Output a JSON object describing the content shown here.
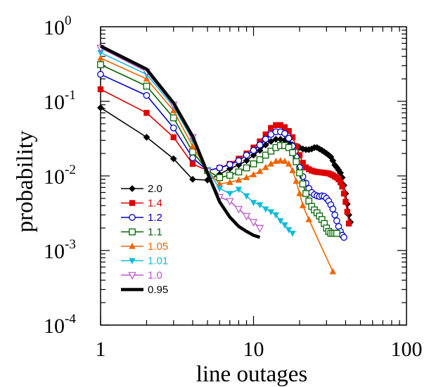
{
  "chart_data": {
    "type": "line",
    "title": "",
    "xlabel": "line outages",
    "ylabel": "probability",
    "xscale": "log",
    "yscale": "log",
    "xlim": [
      1,
      100
    ],
    "ylim": [
      0.0001,
      1
    ],
    "grid": false,
    "legend_position": "bottom-left",
    "x_ticks": [
      {
        "value": 1,
        "label": "1"
      },
      {
        "value": 10,
        "label": "10"
      },
      {
        "value": 100,
        "label": "100"
      }
    ],
    "y_ticks": [
      {
        "value": 1,
        "base": "10",
        "exp": "0"
      },
      {
        "value": 0.1,
        "base": "10",
        "exp": "-1"
      },
      {
        "value": 0.01,
        "base": "10",
        "exp": "-2"
      },
      {
        "value": 0.001,
        "base": "10",
        "exp": "-3"
      },
      {
        "value": 0.0001,
        "base": "10",
        "exp": "-4"
      }
    ],
    "series": [
      {
        "name": "2.0",
        "color": "#000000",
        "marker": "diamond",
        "text_color": "#000000",
        "x": [
          1,
          2,
          3,
          4,
          5,
          6,
          7,
          8,
          9,
          10,
          11,
          12,
          13,
          14,
          15,
          16,
          17,
          18,
          19,
          20,
          21,
          22,
          23,
          24,
          25,
          26,
          27,
          28,
          29,
          30,
          31,
          32,
          33,
          34,
          35,
          36,
          37,
          38,
          39,
          40,
          41,
          42,
          43
        ],
        "y": [
          0.082,
          0.033,
          0.017,
          0.009,
          0.0088,
          0.0105,
          0.0125,
          0.014,
          0.016,
          0.019,
          0.022,
          0.026,
          0.029,
          0.031,
          0.031,
          0.03,
          0.028,
          0.026,
          0.025,
          0.024,
          0.023,
          0.0225,
          0.0225,
          0.023,
          0.024,
          0.024,
          0.023,
          0.022,
          0.021,
          0.02,
          0.019,
          0.018,
          0.016,
          0.014,
          0.013,
          0.012,
          0.011,
          0.0095,
          0.0075,
          0.0058,
          0.0042,
          0.003,
          0.0024
        ]
      },
      {
        "name": "1.4",
        "color": "#dd0000",
        "marker": "square-filled",
        "text_color": "#dd0000",
        "x": [
          1,
          2,
          3,
          4,
          5,
          6,
          7,
          8,
          9,
          10,
          11,
          12,
          13,
          14,
          15,
          16,
          17,
          18,
          19,
          20,
          21,
          22,
          23,
          24,
          25,
          26,
          27,
          28,
          29,
          30,
          31,
          32,
          33,
          34,
          35,
          36,
          37,
          38,
          39,
          40,
          41,
          42
        ],
        "y": [
          0.145,
          0.07,
          0.033,
          0.0145,
          0.0118,
          0.0128,
          0.0145,
          0.017,
          0.02,
          0.024,
          0.029,
          0.036,
          0.044,
          0.048,
          0.048,
          0.045,
          0.04,
          0.033,
          0.025,
          0.019,
          0.015,
          0.013,
          0.0123,
          0.0118,
          0.0115,
          0.0113,
          0.0112,
          0.0111,
          0.011,
          0.0109,
          0.0108,
          0.0105,
          0.0102,
          0.0098,
          0.0095,
          0.009,
          0.0082,
          0.0072,
          0.0058,
          0.0045,
          0.0033,
          0.0023
        ]
      },
      {
        "name": "1.2",
        "color": "#0000cc",
        "marker": "circle-open",
        "text_color": "#0000cc",
        "x": [
          1,
          2,
          3,
          4,
          5,
          6,
          7,
          8,
          9,
          10,
          11,
          12,
          13,
          14,
          15,
          16,
          17,
          18,
          19,
          20,
          21,
          22,
          23,
          24,
          25,
          26,
          27,
          28,
          29,
          30,
          31,
          32,
          33,
          34,
          35,
          36,
          37,
          38,
          39
        ],
        "y": [
          0.23,
          0.12,
          0.044,
          0.0175,
          0.0118,
          0.0128,
          0.0142,
          0.016,
          0.019,
          0.022,
          0.026,
          0.031,
          0.036,
          0.039,
          0.039,
          0.037,
          0.032,
          0.025,
          0.018,
          0.013,
          0.0098,
          0.008,
          0.0068,
          0.006,
          0.0056,
          0.0054,
          0.0053,
          0.0054,
          0.0053,
          0.005,
          0.0046,
          0.0041,
          0.0036,
          0.003,
          0.0025,
          0.0021,
          0.0018,
          0.0016,
          0.0015
        ]
      },
      {
        "name": "1.1",
        "color": "#006600",
        "marker": "square-open",
        "text_color": "#006600",
        "x": [
          1,
          2,
          3,
          4,
          5,
          6,
          7,
          8,
          9,
          10,
          11,
          12,
          13,
          14,
          15,
          16,
          17,
          18,
          19,
          20,
          21,
          22,
          23,
          24,
          25,
          26,
          27,
          28,
          29,
          30,
          31,
          32,
          33,
          34,
          35
        ],
        "y": [
          0.31,
          0.16,
          0.06,
          0.021,
          0.0118,
          0.0095,
          0.0102,
          0.0113,
          0.0128,
          0.0145,
          0.0165,
          0.019,
          0.0215,
          0.024,
          0.0255,
          0.0255,
          0.024,
          0.0205,
          0.0155,
          0.011,
          0.0078,
          0.0058,
          0.0046,
          0.0039,
          0.0035,
          0.0032,
          0.0029,
          0.0026,
          0.0023,
          0.002,
          0.0018,
          0.0017,
          0.0017,
          0.0017,
          0.0017
        ]
      },
      {
        "name": "1.05",
        "color": "#ee6600",
        "marker": "triangle-up",
        "text_color": "#ee6600",
        "x": [
          1,
          2,
          3,
          4,
          5,
          6,
          7,
          8,
          9,
          10,
          11,
          12,
          13,
          14,
          15,
          16,
          17,
          18,
          19,
          20,
          21,
          23,
          33
        ],
        "y": [
          0.38,
          0.2,
          0.075,
          0.025,
          0.0118,
          0.0078,
          0.0082,
          0.0088,
          0.0095,
          0.0104,
          0.0115,
          0.013,
          0.0145,
          0.0157,
          0.016,
          0.0157,
          0.0145,
          0.0118,
          0.0085,
          0.0058,
          0.004,
          0.0026,
          0.00052
        ]
      },
      {
        "name": "1.01",
        "color": "#11bbdd",
        "marker": "triangle-down",
        "text_color": "#11bbdd",
        "x": [
          1,
          2,
          3,
          4,
          5,
          6,
          7,
          8,
          9,
          10,
          11,
          12,
          13,
          14,
          15,
          16,
          17,
          18
        ],
        "y": [
          0.45,
          0.23,
          0.085,
          0.03,
          0.012,
          0.0068,
          0.0058,
          0.0066,
          0.0054,
          0.0044,
          0.0041,
          0.0036,
          0.0033,
          0.003,
          0.0025,
          0.0022,
          0.0019,
          0.0017
        ]
      },
      {
        "name": "1.0",
        "color": "#bb55cc",
        "marker": "triangle-down-open",
        "text_color": "#bb55cc",
        "x": [
          1,
          2,
          3,
          4,
          5,
          6,
          7,
          8,
          9,
          10,
          11
        ],
        "y": [
          0.52,
          0.25,
          0.09,
          0.033,
          0.0115,
          0.0052,
          0.0046,
          0.0036,
          0.0029,
          0.0024,
          0.002
        ]
      },
      {
        "name": "0.95",
        "color": "#000000",
        "marker": "none",
        "thick": true,
        "text_color": "#000000",
        "x": [
          1,
          2,
          3,
          4,
          5,
          6,
          7,
          8,
          9,
          10,
          11
        ],
        "y": [
          0.55,
          0.27,
          0.095,
          0.034,
          0.011,
          0.0045,
          0.0028,
          0.0021,
          0.0018,
          0.0016,
          0.0015
        ]
      }
    ]
  }
}
